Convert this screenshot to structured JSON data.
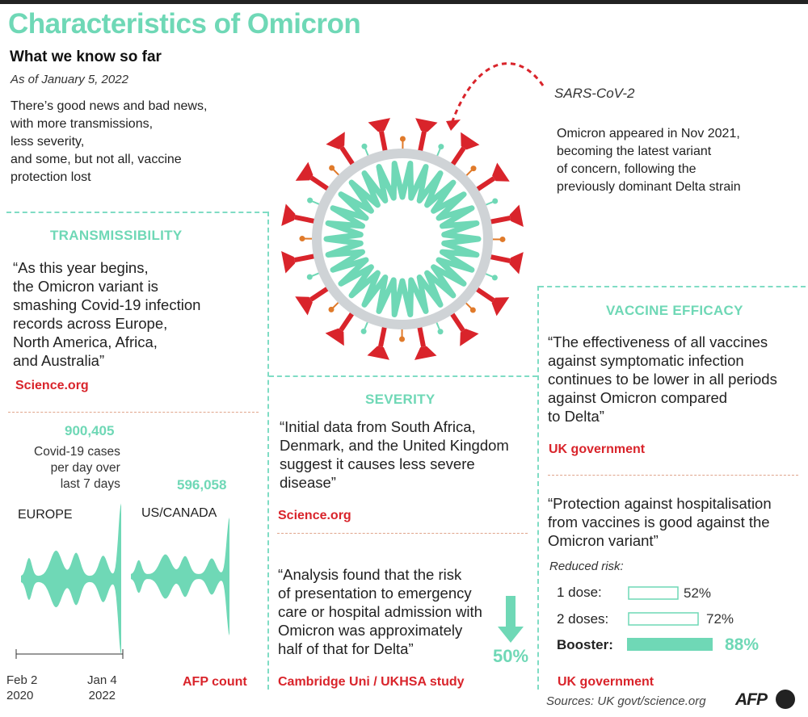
{
  "header": {
    "title": "Characteristics of Omicron",
    "subtitle": "What we know so far",
    "date": "As of January 5, 2022",
    "intro": "There’s good news and bad news,\nwith more transmissions,\nless severity,\nand some, but not all, vaccine\nprotection lost"
  },
  "virus": {
    "label": "SARS-CoV-2",
    "description": "Omicron appeared in Nov 2021,\nbecoming the latest variant\nof concern, following the\npreviously dominant Delta strain"
  },
  "transmissibility": {
    "heading": "TRANSMISSIBILITY",
    "quote": "“As this year begins,\nthe Omicron variant is\nsmashing Covid-19 infection\nrecords across Europe,\nNorth America, Africa,\nand Australia”",
    "source": "Science.org",
    "chart_source": "AFP count"
  },
  "severity": {
    "heading": "SEVERITY",
    "quote1": "“Initial data from South Africa,\nDenmark, and the United Kingdom\nsuggest it causes less severe\ndisease”",
    "source1": "Science.org",
    "quote2": "“Analysis found that the risk\nof presentation to emergency\ncare or hospital admission with\nOmicron was approximately\nhalf of that for Delta”",
    "risk_value": "50%",
    "source2": "Cambridge Uni / UKHSA study"
  },
  "vaccine": {
    "heading": "VACCINE EFFICACY",
    "quote1": "“The effectiveness of all vaccines\nagainst symptomatic infection\ncontinues to be lower in all periods\nagainst Omicron compared\nto Delta”",
    "source1": "UK government",
    "quote2": "“Protection against hospitalisation\nfrom vaccines is good against the\nOmicron variant”",
    "reduced_label": "Reduced risk:",
    "source2": "UK government"
  },
  "footer": {
    "sources": "Sources: UK govt/science.org",
    "logo": "AFP"
  },
  "colors": {
    "accent": "#6fd8b6",
    "red": "#d9242b",
    "orange": "#e07a2a"
  },
  "chart_data": [
    {
      "type": "area",
      "title": "Covid-19 cases per day over last 7 days",
      "description": "Covid-19 cases\nper day over\nlast 7 days",
      "series": [
        {
          "name": "EUROPE",
          "peak": 900405,
          "peak_label": "900,405"
        },
        {
          "name": "US/CANADA",
          "peak": 596058,
          "peak_label": "596,058"
        }
      ],
      "x_start": "Feb 2\n2020",
      "x_end": "Jan 4\n2022",
      "xlabel": "",
      "ylabel": ""
    },
    {
      "type": "bar",
      "title": "Reduced risk:",
      "categories": [
        "1 dose:",
        "2 doses:",
        "Booster:"
      ],
      "values": [
        52,
        72,
        88
      ],
      "labels": [
        "52%",
        "72%",
        "88%"
      ],
      "ylim": [
        0,
        100
      ]
    }
  ]
}
